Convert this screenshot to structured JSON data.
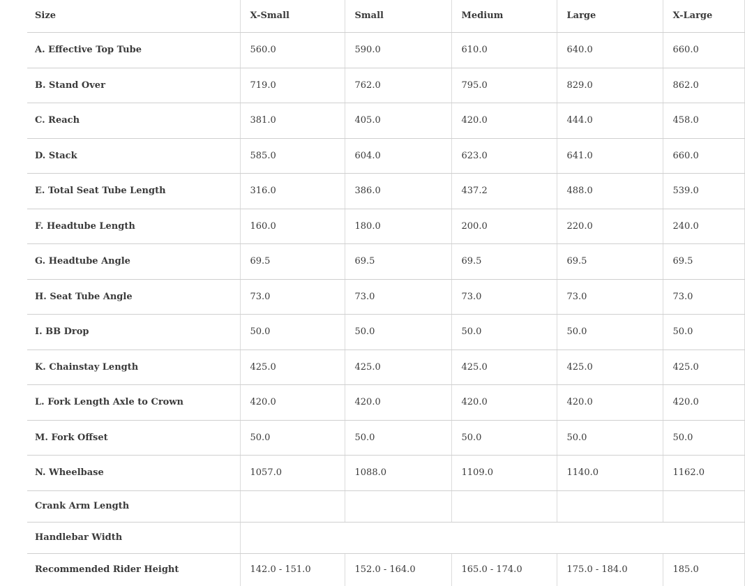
{
  "table": {
    "headers": [
      "Size",
      "X-Small",
      "Small",
      "Medium",
      "Large",
      "X-Large"
    ],
    "rows": [
      {
        "label": "A. Effective Top Tube",
        "values": [
          "560.0",
          "590.0",
          "610.0",
          "640.0",
          "660.0"
        ]
      },
      {
        "label": "B. Stand Over",
        "values": [
          "719.0",
          "762.0",
          "795.0",
          "829.0",
          "862.0"
        ]
      },
      {
        "label": "C. Reach",
        "values": [
          "381.0",
          "405.0",
          "420.0",
          "444.0",
          "458.0"
        ]
      },
      {
        "label": "D. Stack",
        "values": [
          "585.0",
          "604.0",
          "623.0",
          "641.0",
          "660.0"
        ]
      },
      {
        "label": "E. Total Seat Tube Length",
        "values": [
          "316.0",
          "386.0",
          "437.2",
          "488.0",
          "539.0"
        ]
      },
      {
        "label": "F. Headtube Length",
        "values": [
          "160.0",
          "180.0",
          "200.0",
          "220.0",
          "240.0"
        ]
      },
      {
        "label": "G. Headtube Angle",
        "values": [
          "69.5",
          "69.5",
          "69.5",
          "69.5",
          "69.5"
        ]
      },
      {
        "label": "H. Seat Tube Angle",
        "values": [
          "73.0",
          "73.0",
          "73.0",
          "73.0",
          "73.0"
        ]
      },
      {
        "label": "I. BB Drop",
        "values": [
          "50.0",
          "50.0",
          "50.0",
          "50.0",
          "50.0"
        ]
      },
      {
        "label": "K. Chainstay Length",
        "values": [
          "425.0",
          "425.0",
          "425.0",
          "425.0",
          "425.0"
        ]
      },
      {
        "label": "L. Fork Length Axle to Crown",
        "values": [
          "420.0",
          "420.0",
          "420.0",
          "420.0",
          "420.0"
        ]
      },
      {
        "label": "M. Fork Offset",
        "values": [
          "50.0",
          "50.0",
          "50.0",
          "50.0",
          "50.0"
        ]
      },
      {
        "label": "N. Wheelbase",
        "values": [
          "1057.0",
          "1088.0",
          "1109.0",
          "1140.0",
          "1162.0"
        ]
      },
      {
        "label": "Crank Arm Length",
        "values": [
          "",
          "",
          "",
          "",
          ""
        ],
        "short": true
      },
      {
        "label": "Handlebar Width",
        "values": [
          ""
        ],
        "merged": true,
        "short": true
      },
      {
        "label": "Recommended Rider Height",
        "values": [
          "142.0 - 151.0",
          "152.0 - 164.0",
          "165.0 - 174.0",
          "175.0 - 184.0",
          "185.0"
        ],
        "last": true
      }
    ]
  }
}
